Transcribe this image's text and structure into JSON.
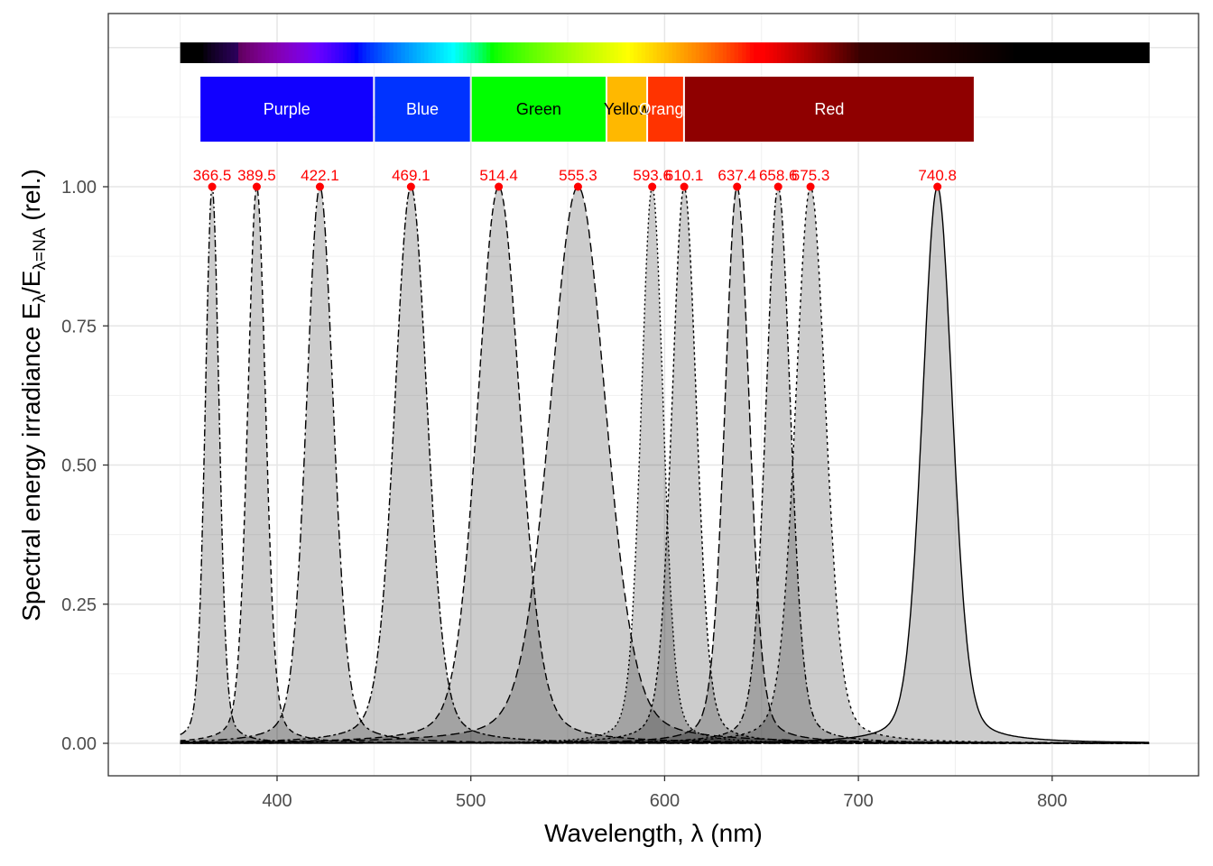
{
  "chart_data": {
    "type": "area",
    "xlabel": "Wavelength, λ (nm)",
    "ylabel_parts": [
      {
        "t": "Spectral  energy  irradiance  ",
        "sub": false
      },
      {
        "t": "E",
        "sub": false
      },
      {
        "t": "λ",
        "sub": true
      },
      {
        "t": "/",
        "sub": false
      },
      {
        "t": "E",
        "sub": false
      },
      {
        "t": "λ=NA",
        "sub": true
      },
      {
        "t": "  (rel.)",
        "sub": false
      }
    ],
    "xlim": [
      320,
      860
    ],
    "ylim": [
      -0.06,
      1.37
    ],
    "x_ticks": [
      400,
      500,
      600,
      700,
      800
    ],
    "x_tick_labels": [
      "400",
      "500",
      "600",
      "700",
      "800"
    ],
    "y_ticks": [
      0,
      0.25,
      0.5,
      0.75,
      1.0
    ],
    "y_tick_labels": [
      "0.00",
      "0.25",
      "0.50",
      "0.75",
      "1.00"
    ],
    "grid": true,
    "wavelength_range": [
      350,
      850
    ],
    "peaks": [
      {
        "label": "366.5",
        "wl": 366.5,
        "fwhm": 8.5,
        "value": 1.0
      },
      {
        "label": "389.5",
        "wl": 389.5,
        "fwhm": 11,
        "value": 1.0
      },
      {
        "label": "422.1",
        "wl": 422.1,
        "fwhm": 16.5,
        "value": 1.0
      },
      {
        "label": "469.1",
        "wl": 469.1,
        "fwhm": 20,
        "value": 1.0
      },
      {
        "label": "514.4",
        "wl": 514.4,
        "fwhm": 26,
        "value": 1.0
      },
      {
        "label": "555.3",
        "wl": 555.3,
        "fwhm": 34,
        "value": 1.0
      },
      {
        "label": "593.6",
        "wl": 593.6,
        "fwhm": 13.5,
        "value": 1.0
      },
      {
        "label": "610.1",
        "wl": 610.1,
        "fwhm": 15,
        "value": 1.0
      },
      {
        "label": "637.4",
        "wl": 637.4,
        "fwhm": 15,
        "value": 1.0
      },
      {
        "label": "658.6",
        "wl": 658.6,
        "fwhm": 15,
        "value": 1.0
      },
      {
        "label": "675.3",
        "wl": 675.3,
        "fwhm": 18.5,
        "value": 1.0
      },
      {
        "label": "740.8",
        "wl": 740.8,
        "fwhm": 18.5,
        "value": 1.0
      }
    ],
    "bands": [
      {
        "name": "Purple",
        "from": 360,
        "to": 450,
        "color": "#1100ff",
        "text_color": "#ffffff"
      },
      {
        "name": "Blue",
        "from": 450,
        "to": 500,
        "color": "#0033ff",
        "text_color": "#ffffff"
      },
      {
        "name": "Green",
        "from": 500,
        "to": 570,
        "color": "#00ff00",
        "text_color": "#000000"
      },
      {
        "name": "Yellow",
        "from": 570,
        "to": 591,
        "color": "#ffb800",
        "text_color": "#000000"
      },
      {
        "name": "Orange",
        "from": 591,
        "to": 610,
        "color": "#ff3300",
        "text_color": "#ffffff"
      },
      {
        "name": "Red",
        "from": 610,
        "to": 760,
        "color": "#8f0000",
        "text_color": "#ffffff"
      }
    ],
    "peak_marker_color": "#ff0000",
    "fill_color": "#cccccc"
  }
}
